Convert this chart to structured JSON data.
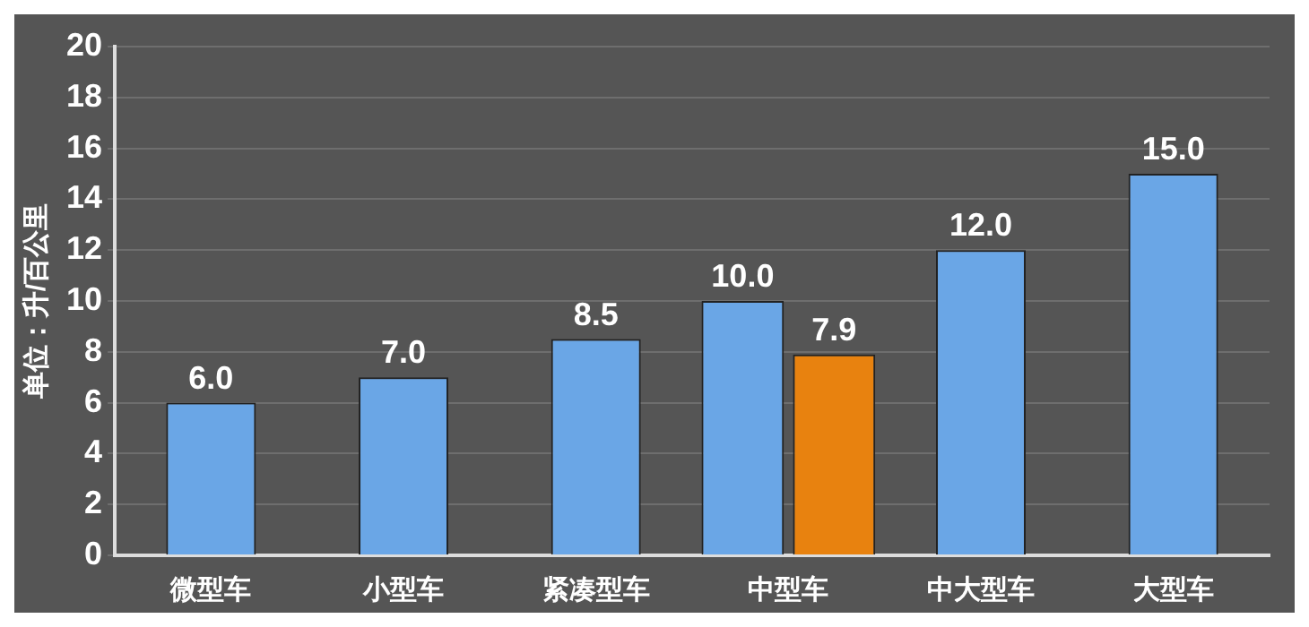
{
  "chart_data": {
    "type": "bar",
    "ylabel": "单位：升/百公里",
    "categories": [
      "微型车",
      "小型车",
      "紧凑型车",
      "中型车",
      "中大型车",
      "大型车"
    ],
    "series": [
      {
        "color": "#6aa6e6",
        "values": [
          6.0,
          7.0,
          8.5,
          10.0,
          12.0,
          15.0
        ],
        "value_labels": [
          "6.0",
          "7.0",
          "8.5",
          "10.0",
          "12.0",
          "15.0"
        ]
      },
      {
        "color": "#e8820f",
        "values": [
          null,
          null,
          null,
          7.9,
          null,
          null
        ],
        "value_labels": [
          null,
          null,
          null,
          "7.9",
          null,
          null
        ]
      }
    ],
    "ylim": [
      0,
      20
    ],
    "yticks": [
      0,
      2,
      4,
      6,
      8,
      10,
      12,
      14,
      16,
      18,
      20
    ],
    "grid": "y",
    "legend": false
  }
}
